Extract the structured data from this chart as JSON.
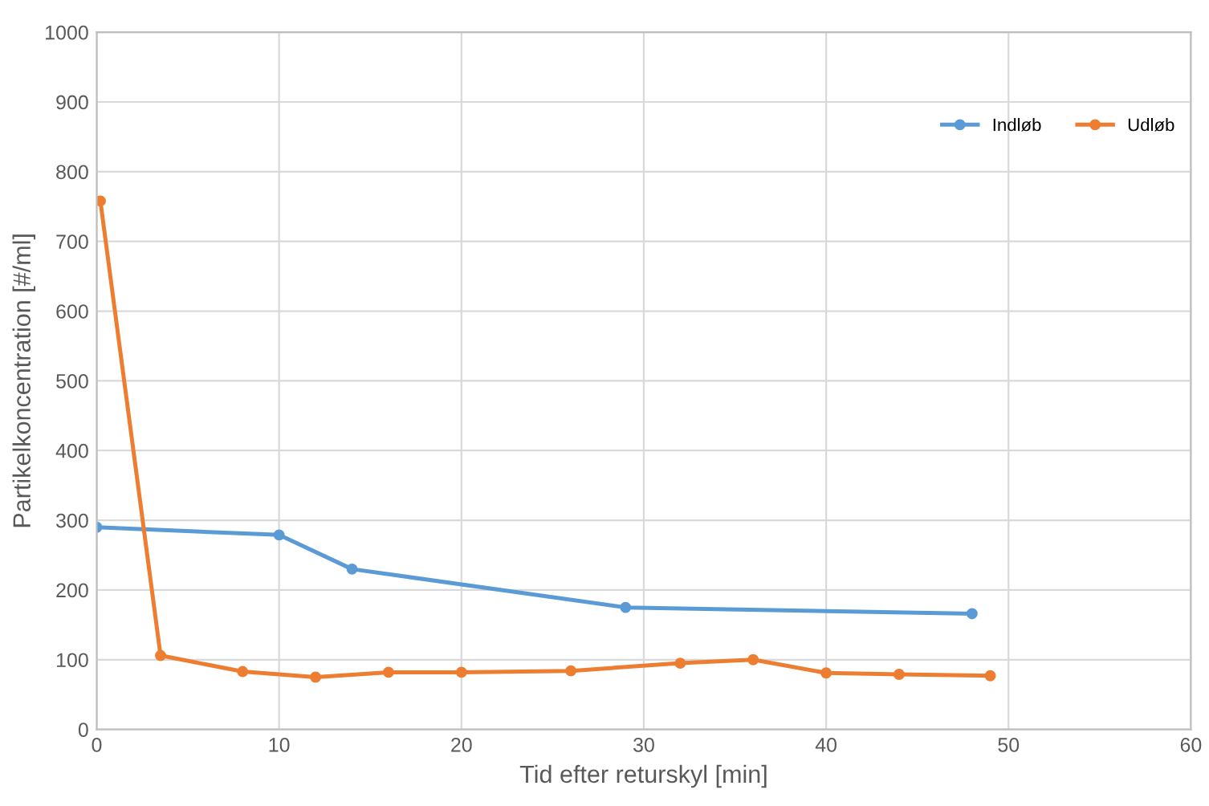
{
  "chart_data": {
    "type": "line",
    "xlabel": "Tid efter returskyl [min]",
    "ylabel": "Partikelkoncentration [#/ml]",
    "xlim": [
      0,
      60
    ],
    "xticks": [
      0,
      10,
      20,
      30,
      40,
      50,
      60
    ],
    "ylim": [
      0,
      1000
    ],
    "yticks": [
      0,
      100,
      200,
      300,
      400,
      500,
      600,
      700,
      800,
      900,
      1000
    ],
    "grid": true,
    "legend": "top right",
    "marker": "circle",
    "line_style": "solid",
    "series": [
      {
        "name": "Indløb",
        "color": "#5b9bd5",
        "x": [
          0,
          10,
          14,
          29,
          48
        ],
        "values": [
          290,
          279,
          230,
          175,
          166
        ]
      },
      {
        "name": "Udløb",
        "color": "#ed7d31",
        "x": [
          0.2,
          3.5,
          8,
          12,
          16,
          20,
          26,
          32,
          36,
          40,
          44,
          49
        ],
        "values": [
          758,
          106,
          83,
          75,
          82,
          82,
          84,
          95,
          100,
          81,
          79,
          77
        ]
      }
    ]
  }
}
